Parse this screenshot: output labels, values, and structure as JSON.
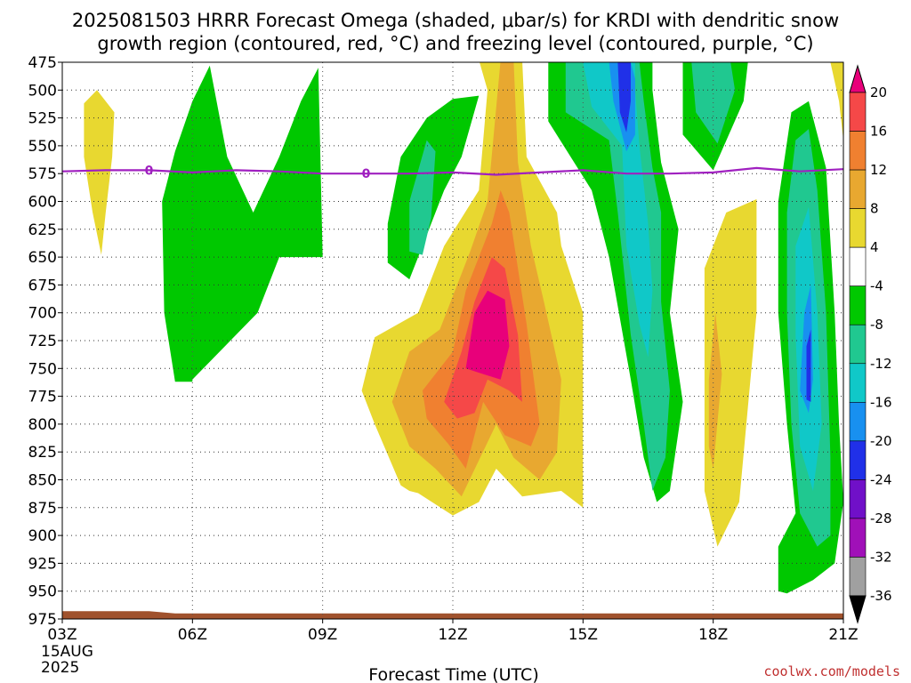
{
  "chart_data": {
    "type": "heatmap",
    "title_lines": [
      "2025081503 HRRR Forecast Omega (shaded, μbar/s) for KRDI with dendritic snow",
      "growth region (contoured, red, °C) and freezing level (contoured, purple, °C)"
    ],
    "xlabel": "Forecast Time (UTC)",
    "x_ticks": [
      "03Z",
      "06Z",
      "09Z",
      "12Z",
      "15Z",
      "18Z",
      "21Z"
    ],
    "x_date_lines": [
      "15AUG",
      "2025"
    ],
    "x_range_hours": [
      3,
      21
    ],
    "y_ticks": [
      475,
      500,
      525,
      550,
      575,
      600,
      625,
      650,
      675,
      700,
      725,
      750,
      775,
      800,
      825,
      850,
      875,
      900,
      925,
      950,
      975
    ],
    "y_range_mb": [
      475,
      975
    ],
    "grid": true,
    "colorbar": {
      "ticks": [
        "20",
        "16",
        "12",
        "8",
        "4",
        "-4",
        "-8",
        "-12",
        "-16",
        "-20",
        "-24",
        "-28",
        "-32",
        "-36"
      ],
      "bins": [
        {
          "range": "> 20",
          "color": "#e8007a"
        },
        {
          "range": "16 to 20",
          "color": "#f54848"
        },
        {
          "range": "12 to 16",
          "color": "#f08030"
        },
        {
          "range": "8 to 12",
          "color": "#e8a830"
        },
        {
          "range": "4 to 8",
          "color": "#e8d830"
        },
        {
          "range": "-4 to 4",
          "color": "#ffffff"
        },
        {
          "range": "-8 to -4",
          "color": "#00c800"
        },
        {
          "range": "-12 to -8",
          "color": "#20c890"
        },
        {
          "range": "-16 to -12",
          "color": "#10c8c8"
        },
        {
          "range": "-20 to -16",
          "color": "#1890f0"
        },
        {
          "range": "-24 to -20",
          "color": "#2030e8"
        },
        {
          "range": "-28 to -24",
          "color": "#7010c8"
        },
        {
          "range": "-32 to -28",
          "color": "#a010b8"
        },
        {
          "range": "-36 to -32",
          "color": "#a0a0a0"
        },
        {
          "range": "< -36",
          "color": "#000000"
        }
      ]
    },
    "freezing_level": {
      "label": "0",
      "color": "#a020c0",
      "points": [
        [
          3,
          573
        ],
        [
          4,
          572
        ],
        [
          5,
          572
        ],
        [
          6,
          574
        ],
        [
          7,
          572
        ],
        [
          8,
          573
        ],
        [
          9,
          575
        ],
        [
          10,
          575
        ],
        [
          11,
          575
        ],
        [
          12,
          574
        ],
        [
          13,
          576
        ],
        [
          14,
          574
        ],
        [
          15,
          572
        ],
        [
          16,
          575
        ],
        [
          17,
          575
        ],
        [
          18,
          574
        ],
        [
          19,
          570
        ],
        [
          20,
          573
        ],
        [
          21,
          571
        ]
      ]
    },
    "terrain": {
      "color": "#a0522d",
      "top_mb": [
        [
          3,
          968
        ],
        [
          5,
          968
        ],
        [
          5.6,
          970
        ],
        [
          21,
          970
        ]
      ]
    },
    "omega_regions": [
      {
        "color_bin": "4 to 8",
        "points": [
          [
            3.5,
            512
          ],
          [
            3.8,
            500
          ],
          [
            4.2,
            520
          ],
          [
            4.15,
            560
          ],
          [
            4.0,
            610
          ],
          [
            3.9,
            648
          ],
          [
            3.7,
            610
          ],
          [
            3.5,
            560
          ]
        ]
      },
      {
        "color_bin": "-8 to -4",
        "points": [
          [
            5.3,
            600
          ],
          [
            5.6,
            555
          ],
          [
            6.0,
            510
          ],
          [
            6.4,
            478
          ],
          [
            6.8,
            560
          ],
          [
            7.4,
            610
          ],
          [
            8.0,
            560
          ],
          [
            8.5,
            510
          ],
          [
            8.9,
            480
          ],
          [
            9.0,
            650
          ],
          [
            8.0,
            650
          ],
          [
            7.5,
            700
          ],
          [
            6.0,
            760
          ],
          [
            6.0,
            762
          ],
          [
            5.6,
            762
          ],
          [
            5.35,
            700
          ]
        ]
      },
      {
        "color_bin": "-8 to -4",
        "points": [
          [
            10.5,
            620
          ],
          [
            10.8,
            560
          ],
          [
            11.4,
            525
          ],
          [
            12.0,
            508
          ],
          [
            12.6,
            505
          ],
          [
            12.2,
            560
          ],
          [
            11.8,
            590
          ],
          [
            11.3,
            640
          ],
          [
            11.0,
            670
          ],
          [
            10.5,
            655
          ]
        ]
      },
      {
        "color_bin": "-12 to -8",
        "points": [
          [
            11.0,
            600
          ],
          [
            11.4,
            545
          ],
          [
            11.6,
            555
          ],
          [
            11.5,
            615
          ],
          [
            11.3,
            648
          ],
          [
            11.0,
            645
          ]
        ]
      },
      {
        "color_bin": "4 to 8",
        "points": [
          [
            9.9,
            770
          ],
          [
            10.2,
            722
          ],
          [
            11.2,
            700
          ],
          [
            11.8,
            640
          ],
          [
            12.6,
            590
          ],
          [
            12.8,
            500
          ],
          [
            12.6,
            473
          ],
          [
            13.6,
            473
          ],
          [
            13.7,
            560
          ],
          [
            14.4,
            610
          ],
          [
            14.5,
            640
          ],
          [
            15.0,
            700
          ],
          [
            15.0,
            875
          ],
          [
            14.5,
            860
          ],
          [
            13.6,
            865
          ],
          [
            13.0,
            840
          ],
          [
            12.6,
            870
          ],
          [
            12.0,
            882
          ],
          [
            11.2,
            862
          ],
          [
            11.0,
            860
          ],
          [
            10.8,
            855
          ],
          [
            10.2,
            800
          ]
        ]
      },
      {
        "color_bin": "8 to 12",
        "points": [
          [
            10.6,
            780
          ],
          [
            11.0,
            735
          ],
          [
            11.7,
            715
          ],
          [
            12.4,
            645
          ],
          [
            12.8,
            600
          ],
          [
            13.1,
            473
          ],
          [
            13.4,
            473
          ],
          [
            13.5,
            565
          ],
          [
            13.8,
            640
          ],
          [
            14.1,
            690
          ],
          [
            14.5,
            760
          ],
          [
            14.4,
            825
          ],
          [
            14.0,
            850
          ],
          [
            13.4,
            830
          ],
          [
            13.0,
            800
          ],
          [
            12.2,
            865
          ],
          [
            11.6,
            840
          ],
          [
            11.0,
            820
          ]
        ]
      },
      {
        "color_bin": "12 to 16",
        "points": [
          [
            11.3,
            770
          ],
          [
            12.0,
            735
          ],
          [
            12.3,
            680
          ],
          [
            12.9,
            620
          ],
          [
            13.1,
            590
          ],
          [
            13.3,
            610
          ],
          [
            13.7,
            710
          ],
          [
            14.0,
            800
          ],
          [
            13.8,
            820
          ],
          [
            13.2,
            810
          ],
          [
            12.7,
            780
          ],
          [
            12.3,
            840
          ],
          [
            11.9,
            818
          ],
          [
            11.4,
            795
          ]
        ]
      },
      {
        "color_bin": "16 to 20",
        "points": [
          [
            11.8,
            780
          ],
          [
            12.2,
            735
          ],
          [
            12.5,
            690
          ],
          [
            12.9,
            650
          ],
          [
            13.2,
            660
          ],
          [
            13.5,
            720
          ],
          [
            13.6,
            780
          ],
          [
            13.3,
            770
          ],
          [
            12.8,
            760
          ],
          [
            12.5,
            790
          ],
          [
            12.1,
            795
          ]
        ]
      },
      {
        "color_bin": "> 20",
        "points": [
          [
            12.3,
            750
          ],
          [
            12.5,
            700
          ],
          [
            12.8,
            680
          ],
          [
            13.2,
            688
          ],
          [
            13.3,
            730
          ],
          [
            13.1,
            760
          ],
          [
            12.7,
            755
          ]
        ]
      },
      {
        "color_bin": "-8 to -4",
        "points": [
          [
            14.2,
            475
          ],
          [
            14.2,
            528
          ],
          [
            15.2,
            590
          ],
          [
            15.6,
            650
          ],
          [
            16.1,
            760
          ],
          [
            16.4,
            830
          ],
          [
            16.7,
            870
          ],
          [
            17.0,
            860
          ],
          [
            17.3,
            780
          ],
          [
            17.0,
            700
          ],
          [
            17.2,
            625
          ],
          [
            16.8,
            565
          ],
          [
            16.6,
            500
          ],
          [
            16.6,
            475
          ]
        ]
      },
      {
        "color_bin": "-12 to -8",
        "points": [
          [
            14.6,
            475
          ],
          [
            14.6,
            520
          ],
          [
            15.6,
            545
          ],
          [
            15.8,
            610
          ],
          [
            16.1,
            720
          ],
          [
            16.4,
            800
          ],
          [
            16.6,
            860
          ],
          [
            16.9,
            830
          ],
          [
            17.0,
            770
          ],
          [
            16.8,
            690
          ],
          [
            16.8,
            610
          ],
          [
            16.6,
            570
          ],
          [
            16.4,
            510
          ],
          [
            16.3,
            475
          ]
        ]
      },
      {
        "color_bin": "-16 to -12",
        "points": [
          [
            15.0,
            475
          ],
          [
            15.2,
            515
          ],
          [
            15.9,
            550
          ],
          [
            16.0,
            640
          ],
          [
            16.3,
            710
          ],
          [
            16.5,
            740
          ],
          [
            16.6,
            680
          ],
          [
            16.5,
            620
          ],
          [
            16.3,
            550
          ],
          [
            16.2,
            500
          ],
          [
            16.2,
            475
          ]
        ]
      },
      {
        "color_bin": "-20 to -16",
        "points": [
          [
            15.6,
            475
          ],
          [
            15.7,
            510
          ],
          [
            16.0,
            555
          ],
          [
            16.2,
            540
          ],
          [
            16.2,
            490
          ],
          [
            16.1,
            475
          ]
        ]
      },
      {
        "color_bin": "-24 to -20",
        "points": [
          [
            15.8,
            475
          ],
          [
            15.85,
            520
          ],
          [
            16.0,
            538
          ],
          [
            16.1,
            510
          ],
          [
            16.1,
            475
          ]
        ]
      },
      {
        "color_bin": "-8 to -4",
        "points": [
          [
            17.3,
            475
          ],
          [
            17.3,
            540
          ],
          [
            18.0,
            572
          ],
          [
            18.7,
            510
          ],
          [
            18.8,
            475
          ]
        ]
      },
      {
        "color_bin": "-12 to -8",
        "points": [
          [
            17.5,
            475
          ],
          [
            17.6,
            520
          ],
          [
            18.1,
            548
          ],
          [
            18.5,
            500
          ],
          [
            18.4,
            475
          ]
        ]
      },
      {
        "color_bin": "4 to 8",
        "points": [
          [
            17.8,
            660
          ],
          [
            18.3,
            610
          ],
          [
            19.0,
            598
          ],
          [
            19.0,
            700
          ],
          [
            18.6,
            870
          ],
          [
            18.1,
            910
          ],
          [
            17.8,
            860
          ],
          [
            17.8,
            780
          ]
        ]
      },
      {
        "color_bin": "8 to 12",
        "points": [
          [
            17.9,
            760
          ],
          [
            18.05,
            700
          ],
          [
            18.2,
            755
          ],
          [
            18.0,
            840
          ],
          [
            17.9,
            820
          ]
        ]
      },
      {
        "color_bin": "4 to 8",
        "points": [
          [
            20.7,
            475
          ],
          [
            21.0,
            473
          ],
          [
            21.0,
            545
          ],
          [
            20.9,
            510
          ]
        ]
      },
      {
        "color_bin": "-8 to -4",
        "points": [
          [
            19.5,
            600
          ],
          [
            19.8,
            520
          ],
          [
            20.2,
            510
          ],
          [
            20.6,
            570
          ],
          [
            20.8,
            700
          ],
          [
            20.9,
            800
          ],
          [
            21.0,
            870
          ],
          [
            20.8,
            925
          ],
          [
            20.3,
            940
          ],
          [
            19.7,
            952
          ],
          [
            19.5,
            950
          ],
          [
            19.5,
            910
          ],
          [
            19.9,
            880
          ],
          [
            19.7,
            800
          ],
          [
            19.5,
            700
          ]
        ]
      },
      {
        "color_bin": "-12 to -8",
        "points": [
          [
            19.7,
            610
          ],
          [
            19.9,
            545
          ],
          [
            20.2,
            535
          ],
          [
            20.4,
            590
          ],
          [
            20.6,
            700
          ],
          [
            20.7,
            830
          ],
          [
            20.7,
            900
          ],
          [
            20.4,
            910
          ],
          [
            20.0,
            880
          ],
          [
            19.8,
            800
          ],
          [
            19.7,
            700
          ]
        ]
      },
      {
        "color_bin": "-16 to -12",
        "points": [
          [
            19.9,
            640
          ],
          [
            20.2,
            605
          ],
          [
            20.4,
            700
          ],
          [
            20.5,
            800
          ],
          [
            20.3,
            860
          ],
          [
            20.0,
            820
          ],
          [
            19.9,
            720
          ]
        ]
      },
      {
        "color_bin": "-20 to -16",
        "points": [
          [
            20.1,
            700
          ],
          [
            20.25,
            675
          ],
          [
            20.3,
            760
          ],
          [
            20.2,
            790
          ],
          [
            20.0,
            770
          ]
        ]
      },
      {
        "color_bin": "-24 to -20",
        "points": [
          [
            20.15,
            730
          ],
          [
            20.25,
            715
          ],
          [
            20.25,
            780
          ],
          [
            20.15,
            778
          ]
        ]
      }
    ]
  },
  "credit": "coolwx.com/models"
}
